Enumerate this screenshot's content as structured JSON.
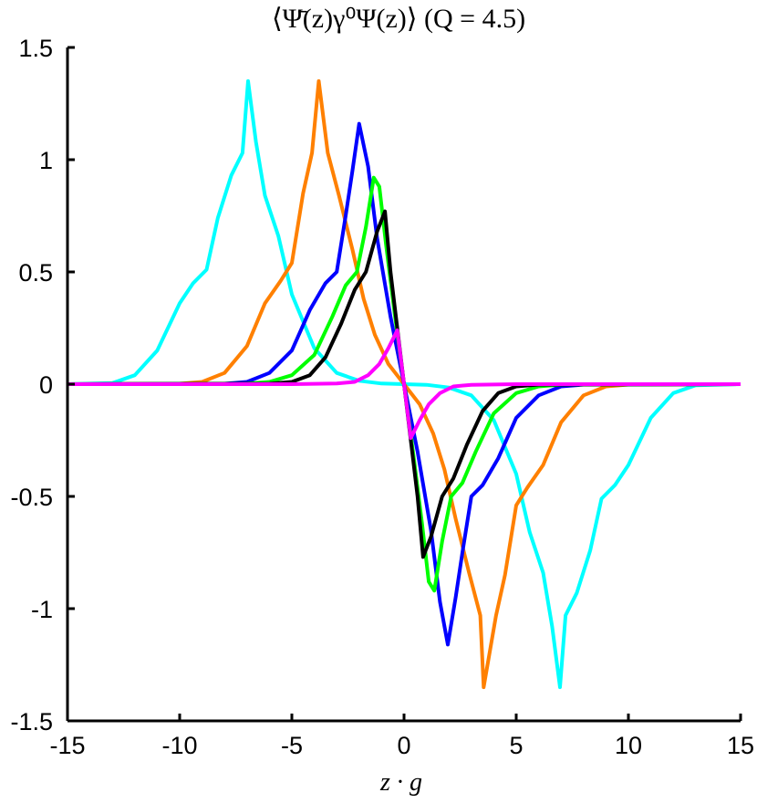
{
  "chart_data": {
    "type": "line",
    "title": "⟨Ψ̄(z)γ⁰Ψ(z)⟩ (Q = 4.5)",
    "xlabel": "z · g",
    "ylabel": "",
    "xlim": [
      -15,
      15
    ],
    "ylim": [
      -1.5,
      1.5
    ],
    "xticks": [
      -15,
      -10,
      -5,
      0,
      5,
      10,
      15
    ],
    "yticks": [
      -1.5,
      -1,
      -0.5,
      0,
      0.5,
      1,
      1.5
    ],
    "xtick_labels": [
      "-15",
      "-10",
      "-5",
      "0",
      "5",
      "10",
      "15"
    ],
    "ytick_labels": [
      "-1.5",
      "-1",
      "-0.5",
      "0",
      "0.5",
      "1",
      "1.5"
    ],
    "grid": false,
    "series": [
      {
        "color": "#00ffff",
        "points": [
          [
            -15,
            0
          ],
          [
            -13,
            0.005
          ],
          [
            -12,
            0.04
          ],
          [
            -11,
            0.15
          ],
          [
            -10,
            0.36
          ],
          [
            -9.4,
            0.45
          ],
          [
            -8.8,
            0.51
          ],
          [
            -8.3,
            0.74
          ],
          [
            -7.7,
            0.93
          ],
          [
            -7.2,
            1.03
          ],
          [
            -6.95,
            1.35
          ],
          [
            -6.6,
            1.08
          ],
          [
            -6.2,
            0.84
          ],
          [
            -5.6,
            0.66
          ],
          [
            -5,
            0.4
          ],
          [
            -4,
            0.16
          ],
          [
            -3,
            0.05
          ],
          [
            -2,
            0.015
          ],
          [
            -1,
            0.003
          ],
          [
            0,
            0
          ],
          [
            1,
            -0.003
          ],
          [
            2,
            -0.015
          ],
          [
            3,
            -0.05
          ],
          [
            4,
            -0.16
          ],
          [
            5,
            -0.4
          ],
          [
            5.6,
            -0.66
          ],
          [
            6.2,
            -0.84
          ],
          [
            6.6,
            -1.08
          ],
          [
            6.95,
            -1.35
          ],
          [
            7.2,
            -1.03
          ],
          [
            7.7,
            -0.93
          ],
          [
            8.3,
            -0.74
          ],
          [
            8.8,
            -0.51
          ],
          [
            9.4,
            -0.45
          ],
          [
            10,
            -0.36
          ],
          [
            11,
            -0.15
          ],
          [
            12,
            -0.04
          ],
          [
            13,
            -0.005
          ],
          [
            15,
            0
          ]
        ]
      },
      {
        "color": "#ff8000",
        "points": [
          [
            -15,
            0
          ],
          [
            -10,
            0.002
          ],
          [
            -9,
            0.01
          ],
          [
            -8,
            0.05
          ],
          [
            -7,
            0.17
          ],
          [
            -6.2,
            0.36
          ],
          [
            -5.5,
            0.46
          ],
          [
            -5,
            0.54
          ],
          [
            -4.5,
            0.85
          ],
          [
            -4.1,
            1.03
          ],
          [
            -3.8,
            1.35
          ],
          [
            -3.4,
            1.03
          ],
          [
            -2.9,
            0.84
          ],
          [
            -2.3,
            0.6
          ],
          [
            -1.8,
            0.38
          ],
          [
            -1.3,
            0.22
          ],
          [
            -0.7,
            0.09
          ],
          [
            0,
            0
          ],
          [
            0.7,
            -0.09
          ],
          [
            1.3,
            -0.22
          ],
          [
            1.8,
            -0.38
          ],
          [
            2.3,
            -0.6
          ],
          [
            2.9,
            -0.84
          ],
          [
            3.4,
            -1.03
          ],
          [
            3.55,
            -1.35
          ],
          [
            4.1,
            -1.03
          ],
          [
            4.5,
            -0.85
          ],
          [
            5,
            -0.54
          ],
          [
            5.5,
            -0.46
          ],
          [
            6.2,
            -0.36
          ],
          [
            7,
            -0.17
          ],
          [
            8,
            -0.05
          ],
          [
            9,
            -0.01
          ],
          [
            10,
            -0.002
          ],
          [
            15,
            0
          ]
        ]
      },
      {
        "color": "#0000ff",
        "points": [
          [
            -15,
            0
          ],
          [
            -8,
            0.002
          ],
          [
            -7,
            0.01
          ],
          [
            -6,
            0.05
          ],
          [
            -5,
            0.15
          ],
          [
            -4.2,
            0.33
          ],
          [
            -3.5,
            0.45
          ],
          [
            -3,
            0.5
          ],
          [
            -2.6,
            0.75
          ],
          [
            -2.3,
            0.95
          ],
          [
            -2.0,
            1.16
          ],
          [
            -1.6,
            0.97
          ],
          [
            -1.2,
            0.65
          ],
          [
            -0.6,
            0.3
          ],
          [
            0,
            0
          ],
          [
            0.6,
            -0.3
          ],
          [
            1.2,
            -0.65
          ],
          [
            1.6,
            -0.97
          ],
          [
            1.95,
            -1.16
          ],
          [
            2.3,
            -0.95
          ],
          [
            2.6,
            -0.75
          ],
          [
            3,
            -0.5
          ],
          [
            3.5,
            -0.45
          ],
          [
            4.2,
            -0.33
          ],
          [
            5,
            -0.15
          ],
          [
            6,
            -0.05
          ],
          [
            7,
            -0.01
          ],
          [
            8,
            -0.002
          ],
          [
            15,
            0
          ]
        ]
      },
      {
        "color": "#00ff00",
        "points": [
          [
            -15,
            0
          ],
          [
            -7,
            0.002
          ],
          [
            -6,
            0.01
          ],
          [
            -5,
            0.04
          ],
          [
            -4,
            0.13
          ],
          [
            -3.2,
            0.3
          ],
          [
            -2.6,
            0.44
          ],
          [
            -2.1,
            0.5
          ],
          [
            -1.7,
            0.7
          ],
          [
            -1.35,
            0.92
          ],
          [
            -1.1,
            0.88
          ],
          [
            -0.8,
            0.62
          ],
          [
            -0.4,
            0.3
          ],
          [
            0,
            0
          ],
          [
            0.4,
            -0.3
          ],
          [
            0.8,
            -0.62
          ],
          [
            1.1,
            -0.88
          ],
          [
            1.35,
            -0.92
          ],
          [
            1.7,
            -0.7
          ],
          [
            2.1,
            -0.5
          ],
          [
            2.6,
            -0.44
          ],
          [
            3.2,
            -0.3
          ],
          [
            4,
            -0.13
          ],
          [
            5,
            -0.04
          ],
          [
            6,
            -0.01
          ],
          [
            7,
            -0.002
          ],
          [
            15,
            0
          ]
        ]
      },
      {
        "color": "#000000",
        "points": [
          [
            -15,
            0
          ],
          [
            -6,
            0.002
          ],
          [
            -5,
            0.01
          ],
          [
            -4.2,
            0.04
          ],
          [
            -3.5,
            0.12
          ],
          [
            -2.8,
            0.27
          ],
          [
            -2.2,
            0.42
          ],
          [
            -1.7,
            0.5
          ],
          [
            -1.2,
            0.68
          ],
          [
            -0.85,
            0.77
          ],
          [
            -0.6,
            0.5
          ],
          [
            -0.3,
            0.25
          ],
          [
            0,
            0
          ],
          [
            0.3,
            -0.25
          ],
          [
            0.6,
            -0.5
          ],
          [
            0.85,
            -0.77
          ],
          [
            1.2,
            -0.68
          ],
          [
            1.7,
            -0.5
          ],
          [
            2.2,
            -0.42
          ],
          [
            2.8,
            -0.27
          ],
          [
            3.5,
            -0.12
          ],
          [
            4.2,
            -0.04
          ],
          [
            5,
            -0.01
          ],
          [
            6,
            -0.002
          ],
          [
            15,
            0
          ]
        ]
      },
      {
        "color": "#ff00ff",
        "points": [
          [
            -15,
            0
          ],
          [
            -5,
            0
          ],
          [
            -3,
            0.003
          ],
          [
            -2.2,
            0.01
          ],
          [
            -1.6,
            0.04
          ],
          [
            -1.1,
            0.09
          ],
          [
            -0.7,
            0.16
          ],
          [
            -0.3,
            0.24
          ],
          [
            0,
            0
          ],
          [
            0.3,
            -0.24
          ],
          [
            0.7,
            -0.16
          ],
          [
            1.1,
            -0.09
          ],
          [
            1.6,
            -0.04
          ],
          [
            2.2,
            -0.01
          ],
          [
            3,
            -0.003
          ],
          [
            5,
            0
          ],
          [
            15,
            0
          ]
        ]
      }
    ]
  }
}
